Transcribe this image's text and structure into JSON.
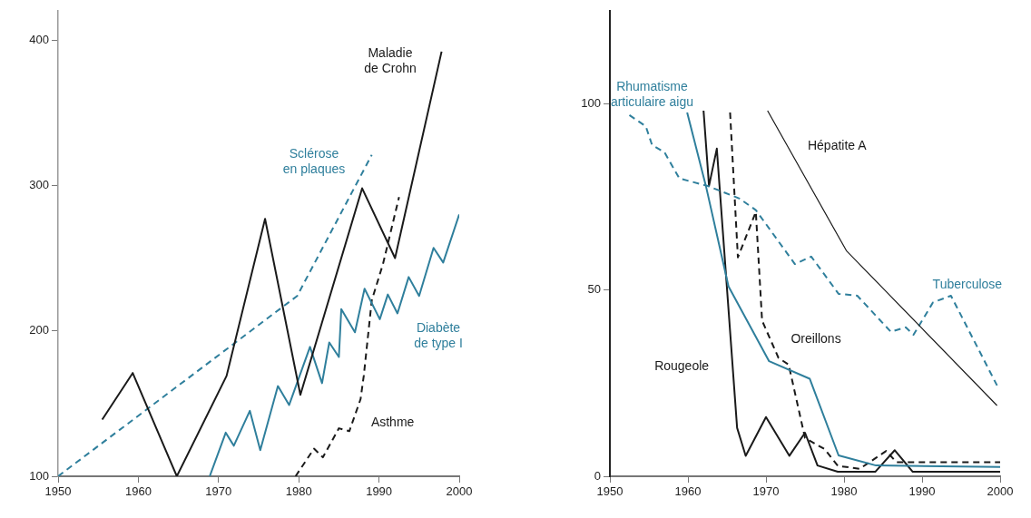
{
  "chart_data": [
    {
      "type": "line",
      "marker": "none",
      "xlim": [
        1950,
        2000
      ],
      "xticks": [
        1950,
        1960,
        1970,
        1980,
        1990,
        2000
      ],
      "ylim": [
        100,
        420
      ],
      "yticks": [
        100,
        200,
        300,
        400
      ],
      "series": [
        {
          "name": "Maladie de Crohn",
          "color": "#1a1a1a",
          "line_style": "solid",
          "x": [
            1955.5,
            1959.3,
            1964.8,
            1971,
            1975.8,
            1980.2,
            1987.9,
            1992,
            1997.8
          ],
          "values": [
            139,
            171,
            100,
            169,
            277,
            156,
            298,
            250,
            392
          ]
        },
        {
          "name": "Sclérose en plaques",
          "color": "#2f7f9c",
          "line_style": "dashed",
          "x": [
            1950,
            1979.8,
            1989.1
          ],
          "values": [
            100,
            224,
            321
          ]
        },
        {
          "name": "Diabète de type I",
          "color": "#2f7f9c",
          "line_style": "solid",
          "x": [
            1968.9,
            1970.9,
            1971.9,
            1973.9,
            1975.2,
            1977.4,
            1978.8,
            1981.4,
            1982.9,
            1983.8,
            1985,
            1985.3,
            1987,
            1988.2,
            1990.1,
            1991.1,
            1992.3,
            1993.7,
            1995,
            1996.8,
            1998,
            2000
          ],
          "values": [
            100,
            130,
            121,
            145,
            118,
            162,
            149,
            189,
            164,
            192,
            182,
            215,
            199,
            229,
            208,
            225,
            212,
            237,
            224,
            257,
            247,
            280
          ]
        },
        {
          "name": "Asthme",
          "color": "#1a1a1a",
          "line_style": "dashed",
          "x": [
            1979.6,
            1981.9,
            1983,
            1985,
            1986.3,
            1987.7,
            1988.1,
            1989.1,
            1990.5,
            1992.5
          ],
          "values": [
            100,
            119,
            113,
            133,
            131,
            153,
            169,
            221,
            246,
            292
          ]
        }
      ]
    },
    {
      "type": "line",
      "marker": "none",
      "xlim": [
        1950,
        2000
      ],
      "xticks": [
        1950,
        1960,
        1970,
        1980,
        1990,
        2000
      ],
      "ylim": [
        0,
        125
      ],
      "yticks": [
        0,
        50,
        100
      ],
      "series": [
        {
          "name": "Rhumatisme articulaire aigu",
          "color": "#2f7f9c",
          "line_style": "solid",
          "x": [
            1959.9,
            1962.3,
            1965.2,
            1970.4,
            1975.6,
            1979.3,
            1984.1,
            2000
          ],
          "values": [
            97.7,
            78,
            51,
            30.9,
            26.2,
            5.6,
            2.9,
            2.5
          ]
        },
        {
          "name": "Hépatite A",
          "color": "#1a1a1a",
          "line_style": "solid",
          "x": [
            1970.2,
            1980.3,
            1999.6
          ],
          "values": [
            98.2,
            60.6,
            19
          ]
        },
        {
          "name": "Tuberculose",
          "color": "#2f7f9c",
          "line_style": "dashed",
          "x": [
            1952.5,
            1954.6,
            1955.4,
            1957,
            1958.9,
            1962.5,
            1966.6,
            1968.7,
            1973.7,
            1975.8,
            1979.3,
            1981.7,
            1986,
            1987.9,
            1988.9,
            1991.4,
            1993.7,
            1999.6
          ],
          "values": [
            97,
            94,
            89,
            87,
            80,
            78,
            74.6,
            71.5,
            57,
            59,
            49,
            48.5,
            38.8,
            40,
            38,
            46.7,
            48.5,
            24.4
          ]
        },
        {
          "name": "Oreillons",
          "color": "#1a1a1a",
          "line_style": "dashed",
          "x": [
            1965.4,
            1966.4,
            1968.7,
            1969.5,
            1971.6,
            1972.9,
            1975,
            1977.5,
            1979.2,
            1982,
            1985.4,
            1986.7,
            2000
          ],
          "values": [
            97.7,
            58.8,
            71,
            41.8,
            31.8,
            30,
            10.3,
            7.3,
            2.8,
            2,
            6.8,
            3.8,
            3.8
          ]
        },
        {
          "name": "Rougeole",
          "color": "#1a1a1a",
          "line_style": "solid",
          "x": [
            1962,
            1962.7,
            1963.7,
            1966.3,
            1967.4,
            1970,
            1973,
            1975,
            1976.6,
            1979.2,
            1984,
            1986.5,
            1988.8,
            2000
          ],
          "values": [
            98.2,
            78,
            88,
            13,
            5.5,
            15.9,
            5.5,
            11.7,
            2.9,
            1.2,
            1.2,
            7,
            1.2,
            1.2
          ]
        }
      ]
    }
  ]
}
